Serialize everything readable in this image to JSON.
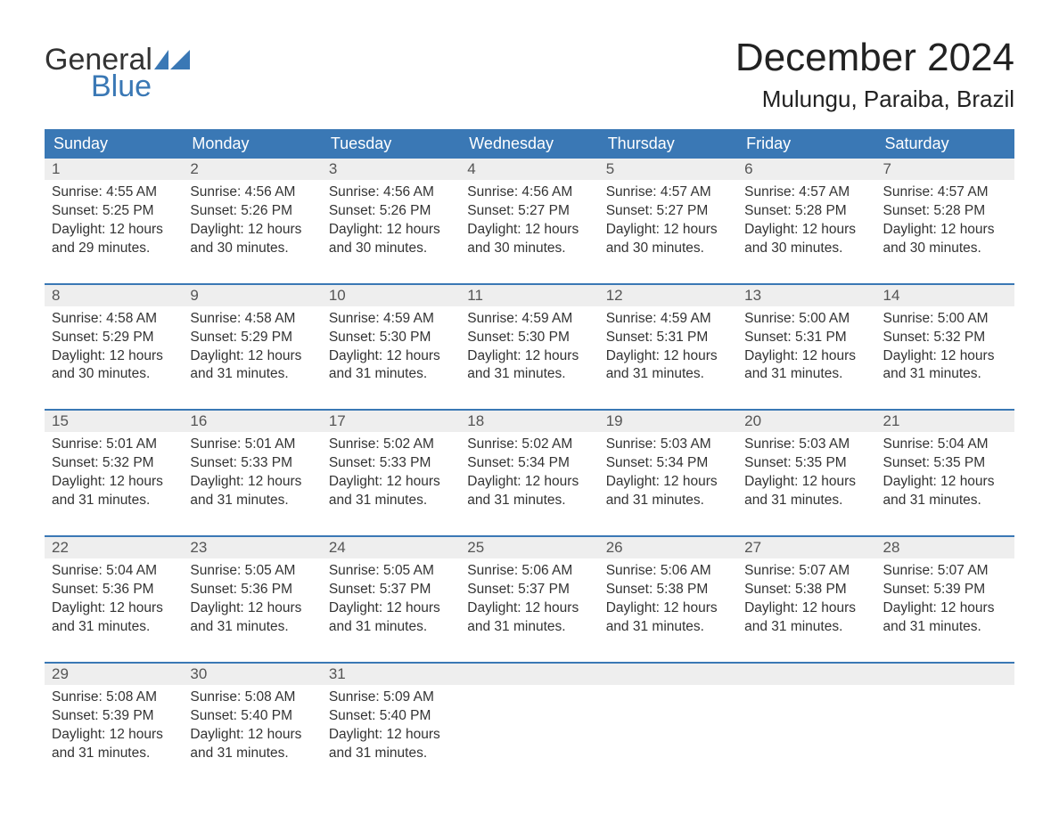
{
  "logo": {
    "word1": "General",
    "word2": "Blue",
    "flag_color": "#3a78b5"
  },
  "title": "December 2024",
  "location": "Mulungu, Paraiba, Brazil",
  "colors": {
    "header_bg": "#3a78b5",
    "header_text": "#ffffff",
    "daynum_bg": "#eeeeee",
    "row_border": "#3a78b5",
    "body_text": "#333333",
    "page_bg": "#ffffff"
  },
  "day_headers": [
    "Sunday",
    "Monday",
    "Tuesday",
    "Wednesday",
    "Thursday",
    "Friday",
    "Saturday"
  ],
  "weeks": [
    [
      {
        "n": "1",
        "sunrise": "4:55 AM",
        "sunset": "5:25 PM",
        "daylight": "12 hours and 29 minutes."
      },
      {
        "n": "2",
        "sunrise": "4:56 AM",
        "sunset": "5:26 PM",
        "daylight": "12 hours and 30 minutes."
      },
      {
        "n": "3",
        "sunrise": "4:56 AM",
        "sunset": "5:26 PM",
        "daylight": "12 hours and 30 minutes."
      },
      {
        "n": "4",
        "sunrise": "4:56 AM",
        "sunset": "5:27 PM",
        "daylight": "12 hours and 30 minutes."
      },
      {
        "n": "5",
        "sunrise": "4:57 AM",
        "sunset": "5:27 PM",
        "daylight": "12 hours and 30 minutes."
      },
      {
        "n": "6",
        "sunrise": "4:57 AM",
        "sunset": "5:28 PM",
        "daylight": "12 hours and 30 minutes."
      },
      {
        "n": "7",
        "sunrise": "4:57 AM",
        "sunset": "5:28 PM",
        "daylight": "12 hours and 30 minutes."
      }
    ],
    [
      {
        "n": "8",
        "sunrise": "4:58 AM",
        "sunset": "5:29 PM",
        "daylight": "12 hours and 30 minutes."
      },
      {
        "n": "9",
        "sunrise": "4:58 AM",
        "sunset": "5:29 PM",
        "daylight": "12 hours and 31 minutes."
      },
      {
        "n": "10",
        "sunrise": "4:59 AM",
        "sunset": "5:30 PM",
        "daylight": "12 hours and 31 minutes."
      },
      {
        "n": "11",
        "sunrise": "4:59 AM",
        "sunset": "5:30 PM",
        "daylight": "12 hours and 31 minutes."
      },
      {
        "n": "12",
        "sunrise": "4:59 AM",
        "sunset": "5:31 PM",
        "daylight": "12 hours and 31 minutes."
      },
      {
        "n": "13",
        "sunrise": "5:00 AM",
        "sunset": "5:31 PM",
        "daylight": "12 hours and 31 minutes."
      },
      {
        "n": "14",
        "sunrise": "5:00 AM",
        "sunset": "5:32 PM",
        "daylight": "12 hours and 31 minutes."
      }
    ],
    [
      {
        "n": "15",
        "sunrise": "5:01 AM",
        "sunset": "5:32 PM",
        "daylight": "12 hours and 31 minutes."
      },
      {
        "n": "16",
        "sunrise": "5:01 AM",
        "sunset": "5:33 PM",
        "daylight": "12 hours and 31 minutes."
      },
      {
        "n": "17",
        "sunrise": "5:02 AM",
        "sunset": "5:33 PM",
        "daylight": "12 hours and 31 minutes."
      },
      {
        "n": "18",
        "sunrise": "5:02 AM",
        "sunset": "5:34 PM",
        "daylight": "12 hours and 31 minutes."
      },
      {
        "n": "19",
        "sunrise": "5:03 AM",
        "sunset": "5:34 PM",
        "daylight": "12 hours and 31 minutes."
      },
      {
        "n": "20",
        "sunrise": "5:03 AM",
        "sunset": "5:35 PM",
        "daylight": "12 hours and 31 minutes."
      },
      {
        "n": "21",
        "sunrise": "5:04 AM",
        "sunset": "5:35 PM",
        "daylight": "12 hours and 31 minutes."
      }
    ],
    [
      {
        "n": "22",
        "sunrise": "5:04 AM",
        "sunset": "5:36 PM",
        "daylight": "12 hours and 31 minutes."
      },
      {
        "n": "23",
        "sunrise": "5:05 AM",
        "sunset": "5:36 PM",
        "daylight": "12 hours and 31 minutes."
      },
      {
        "n": "24",
        "sunrise": "5:05 AM",
        "sunset": "5:37 PM",
        "daylight": "12 hours and 31 minutes."
      },
      {
        "n": "25",
        "sunrise": "5:06 AM",
        "sunset": "5:37 PM",
        "daylight": "12 hours and 31 minutes."
      },
      {
        "n": "26",
        "sunrise": "5:06 AM",
        "sunset": "5:38 PM",
        "daylight": "12 hours and 31 minutes."
      },
      {
        "n": "27",
        "sunrise": "5:07 AM",
        "sunset": "5:38 PM",
        "daylight": "12 hours and 31 minutes."
      },
      {
        "n": "28",
        "sunrise": "5:07 AM",
        "sunset": "5:39 PM",
        "daylight": "12 hours and 31 minutes."
      }
    ],
    [
      {
        "n": "29",
        "sunrise": "5:08 AM",
        "sunset": "5:39 PM",
        "daylight": "12 hours and 31 minutes."
      },
      {
        "n": "30",
        "sunrise": "5:08 AM",
        "sunset": "5:40 PM",
        "daylight": "12 hours and 31 minutes."
      },
      {
        "n": "31",
        "sunrise": "5:09 AM",
        "sunset": "5:40 PM",
        "daylight": "12 hours and 31 minutes."
      },
      null,
      null,
      null,
      null
    ]
  ],
  "labels": {
    "sunrise": "Sunrise: ",
    "sunset": "Sunset: ",
    "daylight": "Daylight: "
  }
}
